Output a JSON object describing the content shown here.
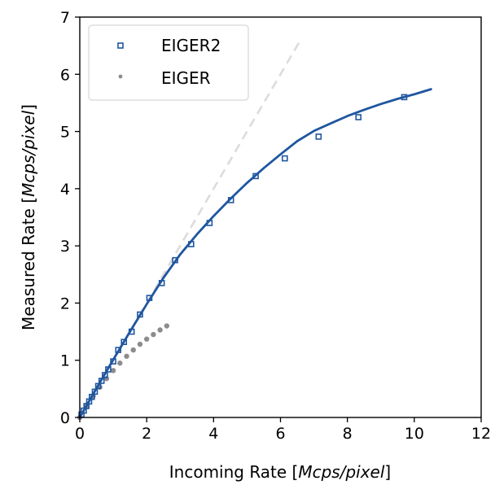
{
  "chart_data": {
    "type": "scatter",
    "xlabel": "Incoming Rate [Mcps/pixel]",
    "ylabel": "Measured Rate [Mcps/pixel]",
    "xlabel_parts": {
      "prefix": "Incoming Rate [",
      "italic": "Mcps/pixel",
      "suffix": "]"
    },
    "ylabel_parts": {
      "prefix": "Measured Rate [",
      "italic": "Mcps/pixel",
      "suffix": "]"
    },
    "xlim": [
      0,
      12
    ],
    "ylim": [
      0,
      7
    ],
    "xticks": [
      "0",
      "2",
      "4",
      "6",
      "8",
      "10",
      "12"
    ],
    "yticks": [
      "0",
      "1",
      "2",
      "3",
      "4",
      "5",
      "6",
      "7"
    ],
    "grid": false,
    "legend_position": "top-left",
    "colors": {
      "eiger2": "#1f56a0",
      "eiger": "#8c8c8c",
      "ideal": "#dcdcdc"
    },
    "series": [
      {
        "name": "EIGER2",
        "marker": "open-square",
        "x": [
          0.05,
          0.12,
          0.2,
          0.28,
          0.36,
          0.45,
          0.55,
          0.65,
          0.75,
          0.85,
          1.0,
          1.15,
          1.32,
          1.55,
          1.8,
          2.08,
          2.45,
          2.85,
          3.33,
          3.88,
          4.52,
          5.26,
          6.13,
          7.14,
          8.33,
          9.7
        ],
        "y": [
          0.05,
          0.12,
          0.2,
          0.28,
          0.36,
          0.45,
          0.55,
          0.64,
          0.74,
          0.84,
          0.98,
          1.18,
          1.32,
          1.5,
          1.8,
          2.09,
          2.35,
          2.75,
          3.03,
          3.4,
          3.8,
          4.22,
          4.53,
          4.91,
          5.25,
          5.6
        ]
      },
      {
        "name": "EIGER",
        "marker": "dot",
        "x": [
          0.0,
          0.2,
          0.4,
          0.6,
          0.8,
          1.0,
          1.2,
          1.4,
          1.6,
          1.8,
          2.0,
          2.2,
          2.4,
          2.6
        ],
        "y": [
          0.0,
          0.19,
          0.37,
          0.53,
          0.68,
          0.82,
          0.95,
          1.07,
          1.18,
          1.28,
          1.37,
          1.45,
          1.53,
          1.6
        ]
      }
    ],
    "fit_curve": {
      "x": [
        0,
        0.5,
        1,
        1.5,
        2,
        2.5,
        3,
        3.5,
        4,
        4.5,
        5,
        5.5,
        6,
        6.5,
        7,
        7.5,
        8,
        8.5,
        9,
        9.5,
        10,
        10.5
      ],
      "y": [
        0,
        0.51,
        1.01,
        1.5,
        1.98,
        2.44,
        2.85,
        3.2,
        3.52,
        3.82,
        4.1,
        4.36,
        4.6,
        4.83,
        5.01,
        5.14,
        5.27,
        5.38,
        5.48,
        5.57,
        5.65,
        5.74
      ]
    },
    "ideal_line": {
      "x": [
        0,
        6.6
      ],
      "y": [
        0,
        6.6
      ]
    }
  }
}
